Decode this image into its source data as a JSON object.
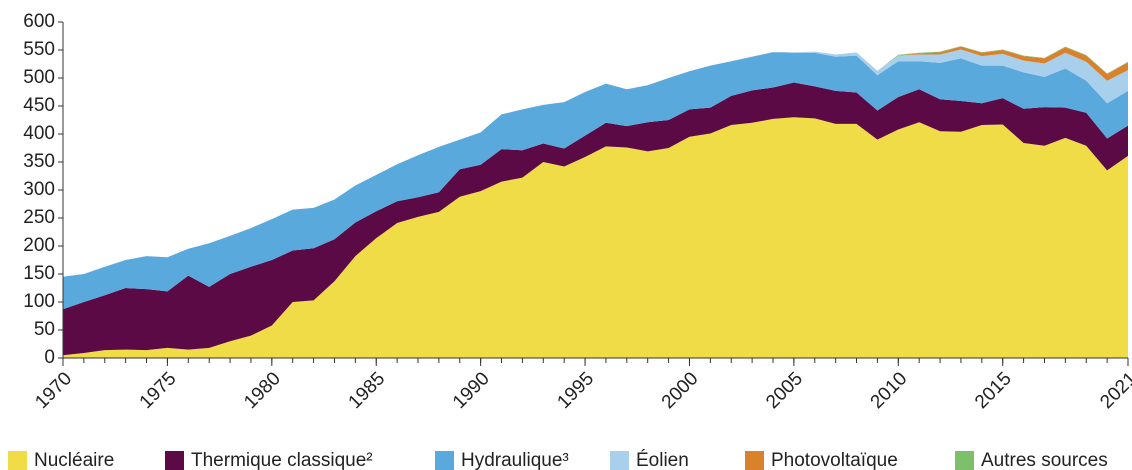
{
  "chart_data": {
    "type": "stacked_area",
    "x": [
      1970,
      1971,
      1972,
      1973,
      1974,
      1975,
      1976,
      1977,
      1978,
      1979,
      1980,
      1981,
      1982,
      1983,
      1984,
      1985,
      1986,
      1987,
      1988,
      1989,
      1990,
      1991,
      1992,
      1993,
      1994,
      1995,
      1996,
      1997,
      1998,
      1999,
      2000,
      2001,
      2002,
      2003,
      2004,
      2005,
      2006,
      2007,
      2008,
      2009,
      2010,
      2011,
      2012,
      2013,
      2014,
      2015,
      2016,
      2017,
      2018,
      2019,
      2020,
      2021
    ],
    "series": [
      {
        "name": "Nucléaire",
        "color": "#f0dc46",
        "values": [
          5,
          9,
          14,
          15,
          14,
          18,
          15,
          18,
          30,
          40,
          58,
          100,
          103,
          137,
          182,
          214,
          241,
          252,
          261,
          288,
          298,
          315,
          322,
          350,
          342,
          359,
          378,
          376,
          369,
          375,
          395,
          401,
          416,
          420,
          427,
          430,
          428,
          418,
          418,
          390,
          408,
          421,
          405,
          404,
          416,
          417,
          384,
          379,
          393,
          379,
          335,
          361
        ]
      },
      {
        "name": "Thermique classique²",
        "color": "#5c0a45",
        "values": [
          82,
          91,
          98,
          110,
          109,
          101,
          132,
          109,
          120,
          123,
          117,
          92,
          93,
          75,
          60,
          48,
          39,
          35,
          35,
          49,
          47,
          58,
          49,
          33,
          32,
          38,
          42,
          38,
          52,
          50,
          49,
          46,
          52,
          58,
          56,
          62,
          57,
          59,
          56,
          52,
          58,
          59,
          57,
          55,
          39,
          47,
          61,
          69,
          54,
          59,
          57,
          54
        ]
      },
      {
        "name": "Hydraulique³",
        "color": "#5aa9dc",
        "values": [
          58,
          50,
          51,
          50,
          59,
          61,
          48,
          78,
          68,
          69,
          73,
          73,
          72,
          71,
          66,
          65,
          66,
          75,
          81,
          53,
          58,
          62,
          73,
          69,
          83,
          78,
          70,
          66,
          66,
          75,
          68,
          75,
          62,
          60,
          63,
          53,
          60,
          61,
          66,
          63,
          64,
          50,
          65,
          76,
          67,
          58,
          65,
          54,
          70,
          57,
          63,
          62
        ]
      },
      {
        "name": "Éolien",
        "color": "#a8cfec",
        "values": [
          0,
          0,
          0,
          0,
          0,
          0,
          0,
          0,
          0,
          0,
          0,
          0,
          0,
          0,
          0,
          0,
          0,
          0,
          0,
          0,
          0,
          0,
          0,
          0,
          0,
          0,
          0,
          0,
          0,
          0,
          0,
          0,
          0,
          0.4,
          0.6,
          1,
          2,
          4,
          5.7,
          7.8,
          9.9,
          12,
          15,
          16,
          17,
          21,
          21,
          24,
          28,
          34,
          40,
          37
        ]
      },
      {
        "name": "Photovoltaïque",
        "color": "#d9822b",
        "values": [
          0,
          0,
          0,
          0,
          0,
          0,
          0,
          0,
          0,
          0,
          0,
          0,
          0,
          0,
          0,
          0,
          0,
          0,
          0,
          0,
          0,
          0,
          0,
          0,
          0,
          0,
          0,
          0,
          0,
          0,
          0,
          0,
          0,
          0,
          0,
          0,
          0,
          0,
          0,
          0,
          0.6,
          2,
          4,
          5,
          6,
          7,
          8,
          9,
          10,
          11,
          12,
          14
        ]
      },
      {
        "name": "Autres sources",
        "color": "#7dbf6a",
        "values": [
          0,
          0,
          0,
          0,
          0,
          0,
          0,
          0,
          0,
          0,
          0,
          0,
          0,
          0,
          0,
          0,
          0,
          0,
          0,
          0,
          0,
          0,
          0,
          0,
          0,
          0,
          0,
          0,
          0,
          0,
          0,
          0,
          0,
          0,
          0,
          0,
          0,
          0,
          0,
          0,
          1,
          1,
          1,
          1,
          1,
          1,
          1,
          1,
          1,
          1,
          1,
          1
        ]
      }
    ],
    "xlim": [
      1970,
      2021
    ],
    "xticks": [
      1970,
      1975,
      1980,
      1985,
      1990,
      1995,
      2000,
      2005,
      2010,
      2015,
      2021
    ],
    "ylim": [
      0,
      600
    ],
    "yticks": [
      0,
      50,
      100,
      150,
      200,
      250,
      300,
      350,
      400,
      450,
      500,
      550,
      600
    ]
  }
}
